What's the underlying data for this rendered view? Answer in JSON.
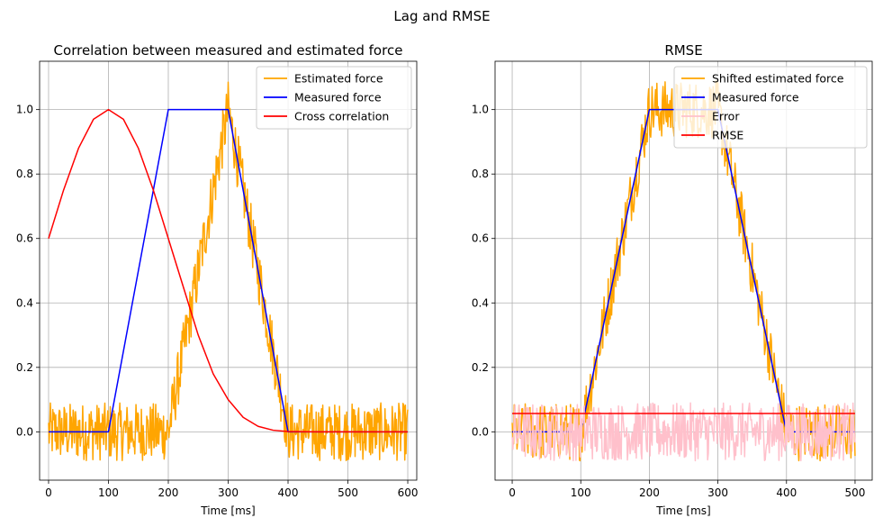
{
  "figure_title": "Lag and RMSE",
  "chart_data": [
    {
      "type": "line",
      "title": "Correlation between measured and estimated force",
      "xlabel": "Time [ms]",
      "ylabel": "",
      "xlim": [
        -15,
        615
      ],
      "ylim": [
        -0.15,
        1.15
      ],
      "xticks": [
        0,
        100,
        200,
        300,
        400,
        500,
        600
      ],
      "yticks": [
        0.0,
        0.2,
        0.4,
        0.6,
        0.8,
        1.0
      ],
      "grid": true,
      "legend_position": "upper right",
      "series": [
        {
          "name": "Estimated force",
          "color": "#ffa500",
          "noise_amplitude": 0.09,
          "x": [
            0,
            200,
            300,
            400,
            600
          ],
          "y": [
            0.0,
            0.0,
            1.0,
            0.0,
            0.0
          ]
        },
        {
          "name": "Measured force",
          "color": "#0000ff",
          "x": [
            0,
            100,
            200,
            300,
            400,
            600
          ],
          "y": [
            0.0,
            0.0,
            1.0,
            1.0,
            0.0,
            0.0
          ]
        },
        {
          "name": "Cross correlation",
          "color": "#ff0000",
          "x": [
            0,
            25,
            50,
            75,
            100,
            125,
            150,
            175,
            200,
            225,
            250,
            275,
            300,
            325,
            350,
            375,
            400,
            450,
            500,
            550,
            600
          ],
          "y": [
            0.6,
            0.75,
            0.88,
            0.97,
            1.0,
            0.97,
            0.88,
            0.75,
            0.6,
            0.45,
            0.3,
            0.18,
            0.1,
            0.045,
            0.017,
            0.005,
            0.001,
            0.0,
            0.0,
            0.0,
            0.0
          ]
        }
      ]
    },
    {
      "type": "line",
      "title": "RMSE",
      "xlabel": "Time [ms]",
      "ylabel": "",
      "xlim": [
        -25,
        525
      ],
      "ylim": [
        -0.15,
        1.15
      ],
      "xticks": [
        0,
        100,
        200,
        300,
        400,
        500
      ],
      "yticks": [
        0.0,
        0.2,
        0.4,
        0.6,
        0.8,
        1.0
      ],
      "grid": true,
      "legend_position": "upper right",
      "series": [
        {
          "name": "Shifted estimated force",
          "color": "#ffa500",
          "noise_amplitude": 0.09,
          "x": [
            0,
            100,
            200,
            300,
            400,
            500
          ],
          "y": [
            0.0,
            0.0,
            1.0,
            1.0,
            0.0,
            0.0
          ]
        },
        {
          "name": "Measured force",
          "color": "#0000ff",
          "x": [
            0,
            100,
            200,
            300,
            400,
            500
          ],
          "y": [
            0.0,
            0.0,
            1.0,
            1.0,
            0.0,
            0.0
          ]
        },
        {
          "name": "Error",
          "color": "#ffc0cb",
          "noise_amplitude": 0.09,
          "x": [
            0,
            500
          ],
          "y": [
            0.0,
            0.0
          ]
        },
        {
          "name": "RMSE",
          "color": "#ff0000",
          "x": [
            0,
            500
          ],
          "y": [
            0.057,
            0.057
          ]
        }
      ]
    }
  ]
}
